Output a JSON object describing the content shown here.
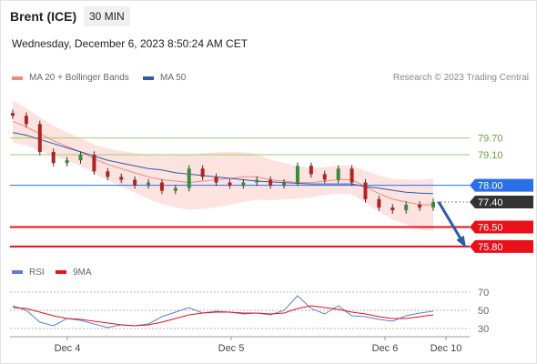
{
  "header": {
    "title": "Brent (ICE)",
    "timeframe": "30 MIN",
    "datetime": "Wednesday, December 6, 2023 8:50:24 AM CET"
  },
  "legend": {
    "ma20": "MA 20 + Bollinger Bands",
    "ma50": "MA 50",
    "copyright": "Research © 2023 Trading Central"
  },
  "chart_data": [
    {
      "type": "line",
      "title": "",
      "x_ticks": [
        "Dec 4",
        "Dec 5",
        "Dec 6",
        "Dec 10"
      ],
      "ylim": [
        75.5,
        80.9
      ],
      "legend_position": "top-left",
      "grid": false,
      "series": [
        {
          "name": "MA 20 + Bollinger Bands",
          "color": "#f08a80",
          "values": [
            80.3,
            80.1,
            79.85,
            79.6,
            79.4,
            79.2,
            78.95,
            78.75,
            78.6,
            78.45,
            78.3,
            78.2,
            78.15,
            78.1,
            78.15,
            78.2,
            78.25,
            78.3,
            78.3,
            78.2,
            78.15,
            78.1,
            78.1,
            78.15,
            78.2,
            78.2,
            77.95,
            77.7,
            77.5,
            77.4,
            77.3,
            77.3
          ]
        },
        {
          "name": "MA 50",
          "color": "#2a5caa",
          "values": [
            79.9,
            79.8,
            79.65,
            79.5,
            79.35,
            79.2,
            79.05,
            78.9,
            78.8,
            78.7,
            78.6,
            78.55,
            78.45,
            78.4,
            78.35,
            78.3,
            78.25,
            78.2,
            78.15,
            78.12,
            78.1,
            78.07,
            78.05,
            78.05,
            78.05,
            78.05,
            77.95,
            77.9,
            77.82,
            77.75,
            77.72,
            77.7
          ]
        }
      ],
      "candles_close": [
        80.5,
        80.2,
        79.2,
        78.8,
        78.9,
        79.1,
        78.5,
        78.3,
        78.2,
        78.0,
        78.1,
        77.8,
        77.9,
        78.6,
        78.3,
        78.1,
        78.0,
        78.1,
        78.2,
        78.0,
        78.1,
        78.7,
        78.4,
        78.2,
        78.6,
        78.1,
        77.5,
        77.2,
        77.1,
        77.3,
        77.2,
        77.4
      ],
      "levels": [
        {
          "value": 79.7,
          "label": "79.70",
          "kind": "resistance",
          "color": "#9bcf6a"
        },
        {
          "value": 79.1,
          "label": "79.10",
          "kind": "resistance",
          "color": "#9bcf6a"
        },
        {
          "value": 78.0,
          "label": "78.00",
          "kind": "pivot",
          "color": "#2a6ee8"
        },
        {
          "value": 77.4,
          "label": "77.40",
          "kind": "last",
          "color": "#333333"
        },
        {
          "value": 76.5,
          "label": "76.50",
          "kind": "support",
          "color": "#e8111a"
        },
        {
          "value": 75.8,
          "label": "75.80",
          "kind": "support",
          "color": "#e8111a"
        }
      ],
      "forecast_arrow": {
        "from": 77.4,
        "to": 75.8
      }
    },
    {
      "type": "line",
      "title": "",
      "ylim": [
        25,
        75
      ],
      "y_ticks": [
        70,
        50,
        30
      ],
      "legend": [
        "RSI",
        "9MA"
      ],
      "series": [
        {
          "name": "RSI",
          "color": "#5b7fd6",
          "values": [
            55,
            50,
            37,
            33,
            41,
            39,
            35,
            31,
            34,
            33,
            35,
            43,
            48,
            53,
            47,
            49,
            48,
            46,
            47,
            45,
            50,
            66,
            52,
            46,
            55,
            44,
            43,
            40,
            38,
            44,
            47,
            49
          ]
        },
        {
          "name": "9MA",
          "color": "#e8111a",
          "values": [
            53,
            52,
            48,
            44,
            41,
            40,
            38,
            36,
            34,
            33,
            34,
            37,
            41,
            45,
            47,
            48,
            48,
            47,
            47,
            46,
            47,
            52,
            55,
            53,
            51,
            48,
            46,
            43,
            41,
            41,
            43,
            45
          ]
        }
      ]
    }
  ]
}
